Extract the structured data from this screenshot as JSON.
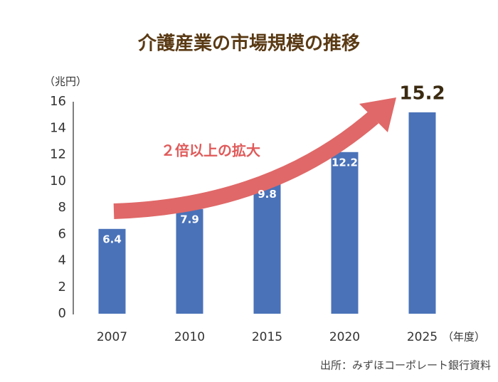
{
  "chart_data": {
    "type": "bar",
    "title": "介護産業の市場規模の推移",
    "y_label": "（兆円）",
    "x_label": "（年度）",
    "annotation": "２倍以上の拡大",
    "source": "出所：みずほコーポレート銀行資料",
    "categories": [
      "2007",
      "2010",
      "2015",
      "2020",
      "2025"
    ],
    "values": [
      6.4,
      7.9,
      9.8,
      12.2,
      15.2
    ],
    "color": "#4a72b8",
    "ylim": [
      0,
      16
    ],
    "yticks": [
      0,
      2,
      4,
      6,
      8,
      10,
      12,
      14,
      16
    ],
    "grid": false
  }
}
